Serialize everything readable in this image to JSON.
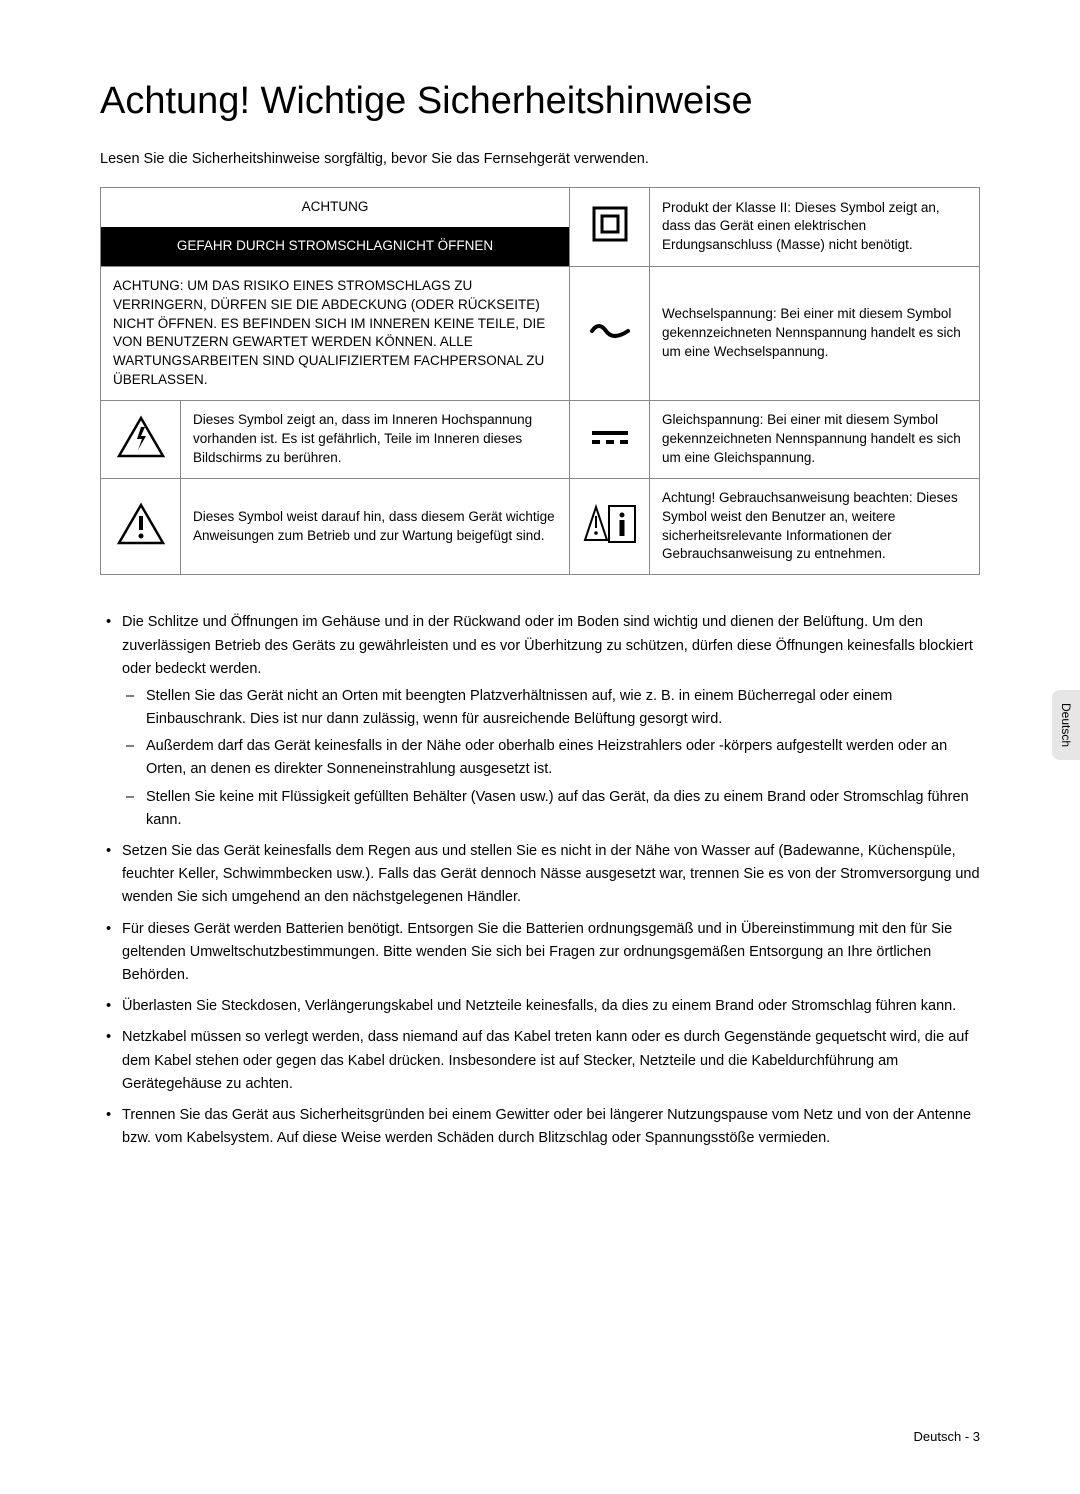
{
  "title": "Achtung! Wichtige Sicherheitshinweise",
  "intro": "Lesen Sie die Sicherheitshinweise sorgfältig, bevor Sie das Fernsehgerät verwenden.",
  "table": {
    "header_top": "ACHTUNG",
    "header_black": "GEFAHR DURCH STROMSCHLAGNICHT ÖFFNEN",
    "row1_right": "Produkt der Klasse II: Dieses Symbol zeigt an, dass das Gerät einen elektrischen Erdungsanschluss (Masse) nicht benötigt.",
    "row2_left": "ACHTUNG: UM DAS RISIKO EINES STROMSCHLAGS ZU VERRINGERN, DÜRFEN SIE DIE ABDECKUNG (ODER RÜCKSEITE) NICHT ÖFFNEN. ES BEFINDEN SICH IM INNEREN KEINE TEILE, DIE VON BENUTZERN GEWARTET WERDEN KÖNNEN. ALLE WARTUNGSARBEITEN SIND QUALIFIZIERTEM FACHPERSONAL ZU ÜBERLASSEN.",
    "row2_right": "Wechselspannung: Bei einer mit diesem Symbol gekennzeichneten Nennspannung handelt es sich um eine Wechselspannung.",
    "row3_left": "Dieses Symbol zeigt an, dass im Inneren Hochspannung vorhanden ist. Es ist gefährlich, Teile im Inneren dieses Bildschirms zu berühren.",
    "row3_right": "Gleichspannung: Bei einer mit diesem Symbol gekennzeichneten Nennspannung handelt es sich um eine Gleichspannung.",
    "row4_left": "Dieses Symbol weist darauf hin, dass diesem Gerät wichtige Anweisungen zum Betrieb und zur Wartung beigefügt sind.",
    "row4_right": "Achtung! Gebrauchsanweisung beachten: Dieses Symbol weist den Benutzer an, weitere sicherheitsrelevante Informationen der Gebrauchsanweisung zu entnehmen."
  },
  "bullets": [
    {
      "text": "Die Schlitze und Öffnungen im Gehäuse und in der Rückwand oder im Boden sind wichtig und dienen der Belüftung. Um den zuverlässigen Betrieb des Geräts zu gewährleisten und es vor Überhitzung zu schützen, dürfen diese Öffnungen keinesfalls blockiert oder bedeckt werden.",
      "sub": [
        "Stellen Sie das Gerät nicht an Orten mit beengten Platzverhältnissen auf, wie z. B. in einem Bücherregal oder einem Einbauschrank. Dies ist nur dann zulässig, wenn für ausreichende Belüftung gesorgt wird.",
        "Außerdem darf das Gerät keinesfalls in der Nähe oder oberhalb eines Heizstrahlers oder -körpers aufgestellt werden oder an Orten, an denen es direkter Sonneneinstrahlung ausgesetzt ist.",
        "Stellen Sie keine mit Flüssigkeit gefüllten Behälter (Vasen usw.) auf das Gerät, da dies zu einem Brand oder Stromschlag führen kann."
      ]
    },
    {
      "text": "Setzen Sie das Gerät keinesfalls dem Regen aus und stellen Sie es nicht in der Nähe von Wasser auf (Badewanne, Küchenspüle, feuchter Keller, Schwimmbecken usw.). Falls das Gerät dennoch Nässe ausgesetzt war, trennen Sie es von der Stromversorgung und wenden Sie sich umgehend an den nächstgelegenen Händler."
    },
    {
      "text": "Für dieses Gerät werden Batterien benötigt. Entsorgen Sie die Batterien ordnungsgemäß und in Übereinstimmung mit den für Sie geltenden Umweltschutzbestimmungen. Bitte wenden Sie sich bei Fragen zur ordnungsgemäßen Entsorgung an Ihre örtlichen Behörden."
    },
    {
      "text": "Überlasten Sie Steckdosen, Verlängerungskabel und Netzteile keinesfalls, da dies zu einem Brand oder Stromschlag führen kann."
    },
    {
      "text": "Netzkabel müssen so verlegt werden, dass niemand auf das Kabel treten kann oder es durch Gegenstände gequetscht wird, die auf dem Kabel stehen oder gegen das Kabel drücken. Insbesondere ist auf Stecker, Netzteile und die Kabeldurchführung am Gerätegehäuse zu achten."
    },
    {
      "text": "Trennen Sie das Gerät aus Sicherheitsgründen bei einem Gewitter oder bei längerer Nutzungspause vom Netz und von der Antenne bzw. vom Kabelsystem. Auf diese Weise werden Schäden durch Blitzschlag oder Spannungsstöße vermieden."
    }
  ],
  "side_tab": "Deutsch",
  "footer": "Deutsch - 3"
}
